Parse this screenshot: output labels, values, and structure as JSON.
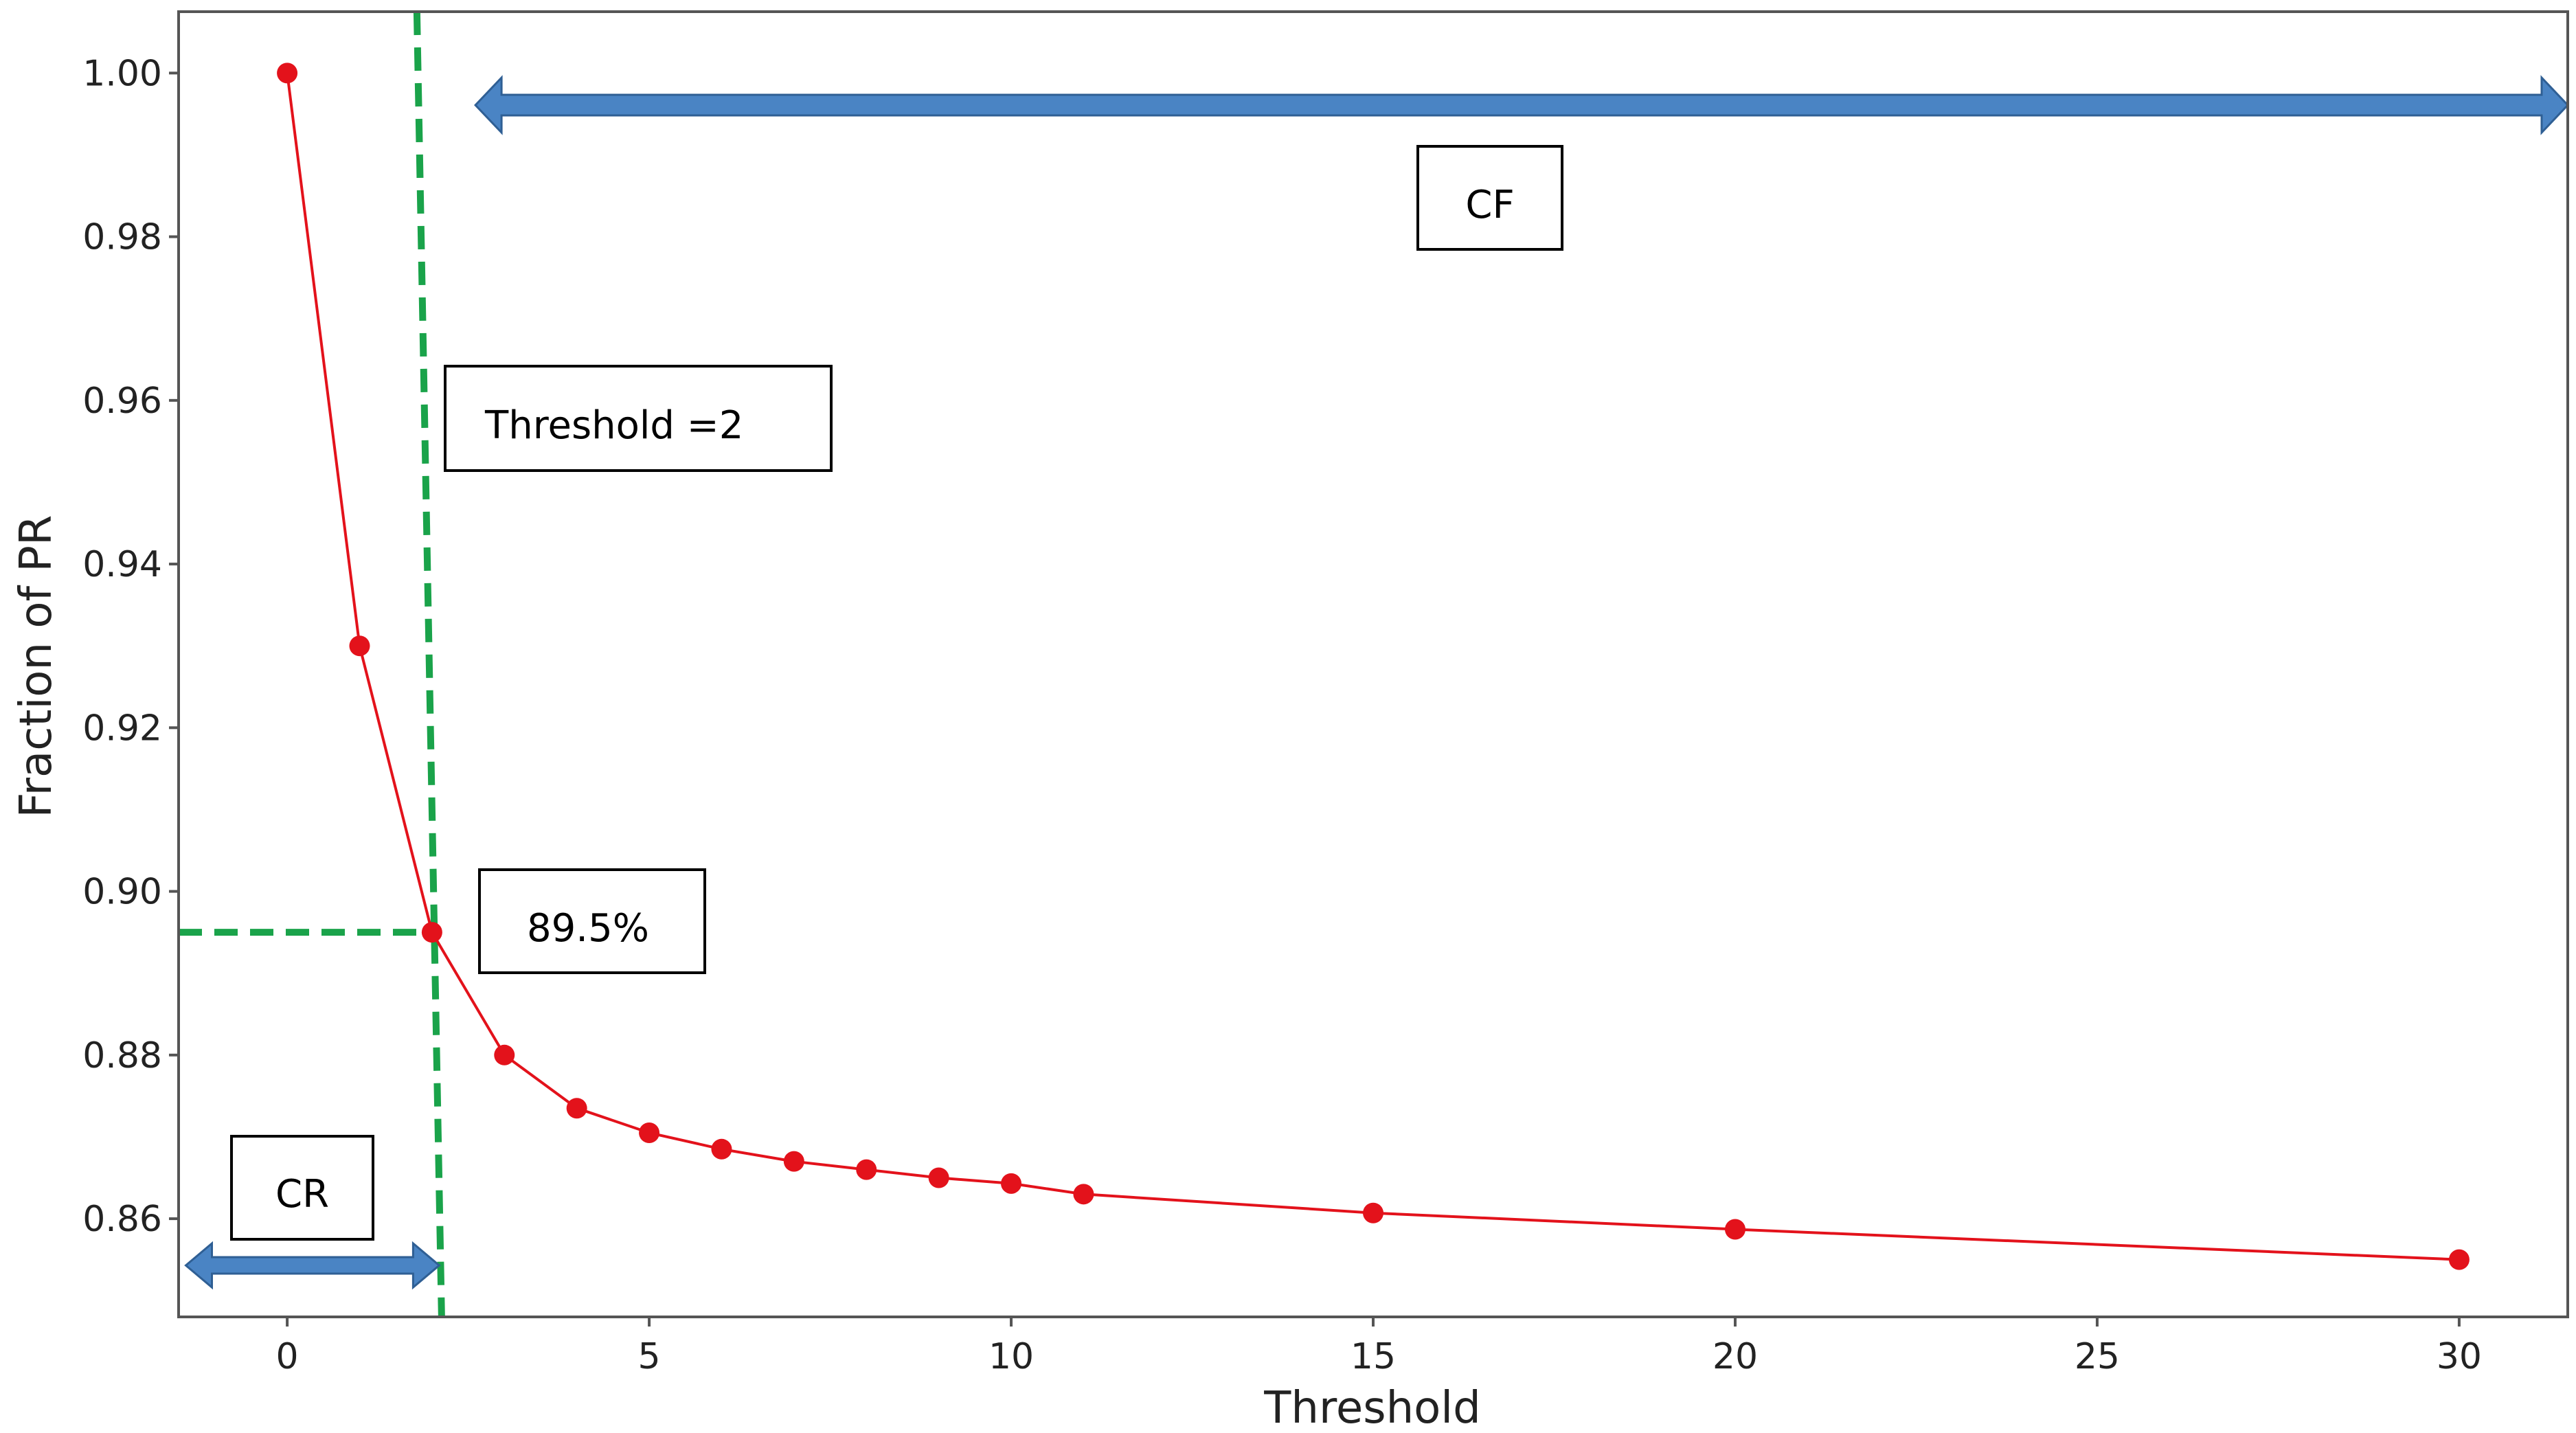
{
  "chart_data": {
    "type": "line",
    "title": "",
    "xlabel": "Threshold",
    "ylabel": "Fraction of PR",
    "xlim": [
      -1.5,
      31.5
    ],
    "ylim": [
      0.848,
      1.0075
    ],
    "xticks": [
      0,
      5,
      10,
      15,
      20,
      25,
      30
    ],
    "yticks": [
      0.86,
      0.88,
      0.9,
      0.92,
      0.94,
      0.96,
      0.98,
      1.0
    ],
    "xtick_labels": [
      "0",
      "5",
      "10",
      "15",
      "20",
      "25",
      "30"
    ],
    "ytick_labels": [
      "0.86",
      "0.88",
      "0.90",
      "0.92",
      "0.94",
      "0.96",
      "0.98",
      "1.00"
    ],
    "grid": false,
    "series": [
      {
        "color": "#e3121b",
        "marker": "circle",
        "x": [
          0,
          1,
          2,
          3,
          4,
          5,
          6,
          7,
          8,
          9,
          10,
          11,
          15,
          20,
          30
        ],
        "y": [
          1.0,
          0.93,
          0.895,
          0.88,
          0.8735,
          0.8705,
          0.8685,
          0.867,
          0.866,
          0.865,
          0.8643,
          0.863,
          0.8607,
          0.8587,
          0.855
        ]
      }
    ],
    "reference_lines": {
      "color": "#1aa34a",
      "style": "dashed",
      "vertical_x": 2,
      "horizontal_y": 0.895
    },
    "annotations": {
      "threshold_box": "Threshold =2",
      "percent_box": "89.5%",
      "cf_box": "CF",
      "cr_box": "CR",
      "arrow_color": "#4a84c4",
      "cf_arrow_x": [
        2.6,
        31.5
      ],
      "cr_arrow_x": [
        -1.4,
        2.1
      ]
    }
  }
}
